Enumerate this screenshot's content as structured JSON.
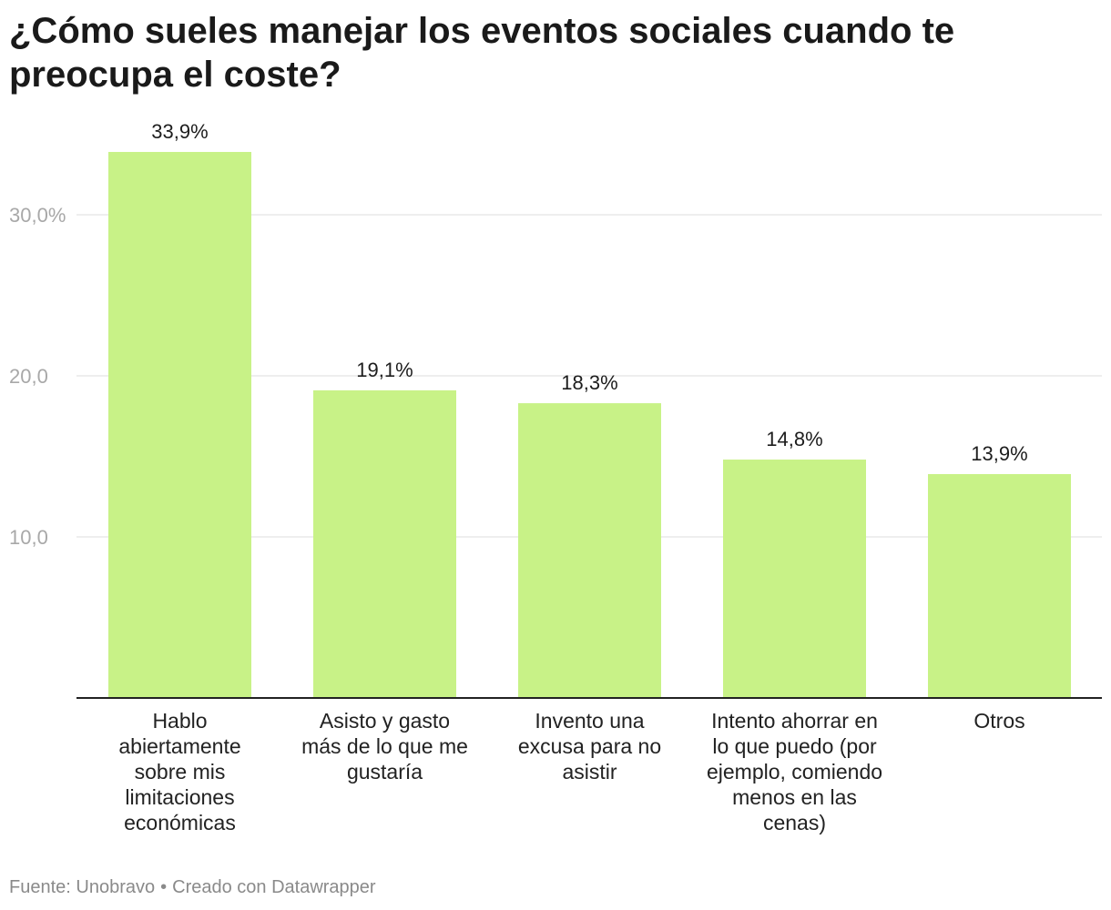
{
  "title": "¿Cómo sueles manejar los eventos sociales cuando te preocupa el coste?",
  "footer": {
    "source": "Fuente: Unobravo",
    "credit": "Creado con Datawrapper"
  },
  "colors": {
    "bar": "#c8f287",
    "grid": "#dddddd",
    "axis": "#222222"
  },
  "chart_data": {
    "type": "bar",
    "title": "¿Cómo sueles manejar los eventos sociales cuando te preocupa el coste?",
    "categories": [
      "Hablo abiertamente sobre mis limitaciones económicas",
      "Asisto y gasto más de lo que me gustaría",
      "Invento una excusa para no asistir",
      "Intento ahorrar en lo que puedo (por ejemplo, comiendo menos en las cenas)",
      "Otros"
    ],
    "category_lines": [
      [
        "Hablo",
        "abiertamente",
        "sobre mis",
        "limitaciones",
        "económicas"
      ],
      [
        "Asisto y gasto",
        "más de lo que me",
        "gustaría"
      ],
      [
        "Invento una",
        "excusa para no",
        "asistir"
      ],
      [
        "Intento ahorrar en",
        "lo que puedo (por",
        "ejemplo, comiendo",
        "menos en las",
        "cenas)"
      ],
      [
        "Otros"
      ]
    ],
    "values": [
      33.9,
      19.1,
      18.3,
      14.8,
      13.9
    ],
    "value_labels": [
      "33,9%",
      "19,1%",
      "18,3%",
      "14,8%",
      "13,9%"
    ],
    "yticks": [
      10,
      20,
      30
    ],
    "ytick_labels": [
      "10,0",
      "20,0",
      "30,0%"
    ],
    "ylim": [
      0,
      33.9
    ],
    "xlabel": "",
    "ylabel": "",
    "grid": true,
    "legend": "none"
  }
}
